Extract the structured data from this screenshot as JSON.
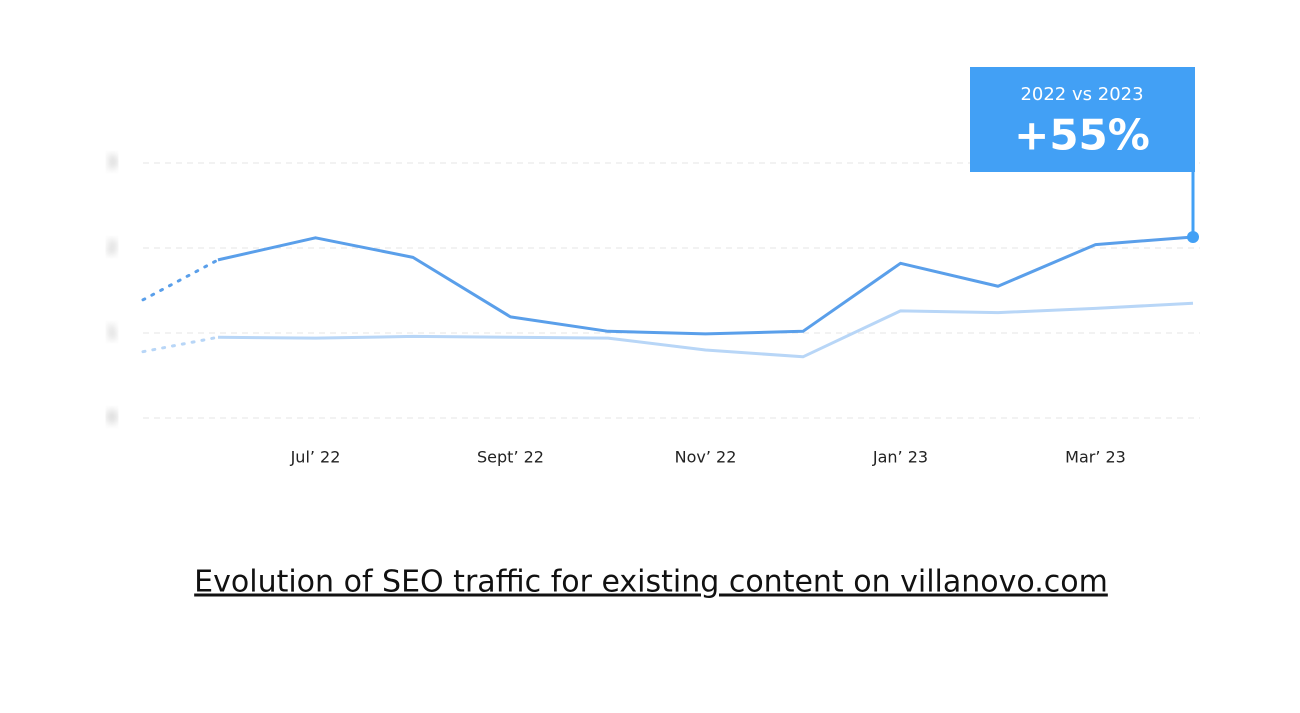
{
  "chart_data": {
    "type": "line",
    "categories": [
      null,
      null,
      "Jul’ 22",
      null,
      "Sept’ 22",
      null,
      "Nov’ 22",
      null,
      "Jan’ 23",
      null,
      "Mar’ 23",
      null
    ],
    "series": [
      {
        "color": "#5a9fea",
        "values": [
          1.39,
          1.86,
          2.12,
          1.89,
          1.19,
          1.02,
          0.99,
          1.02,
          1.82,
          1.55,
          2.04,
          2.13
        ]
      },
      {
        "color": "#b8d6f7",
        "values": [
          0.78,
          0.95,
          0.94,
          0.96,
          0.95,
          0.94,
          0.8,
          0.72,
          1.26,
          1.24,
          1.29,
          1.35
        ]
      }
    ],
    "ylim": [
      0,
      3
    ],
    "yticks": [
      0,
      1,
      2,
      3
    ],
    "grid": true,
    "annotation": {
      "title": "2022 vs 2023",
      "value": "+55%",
      "color": "#42a0f5"
    },
    "caption": "Evolution of SEO traffic for existing content on villanovo.com"
  }
}
